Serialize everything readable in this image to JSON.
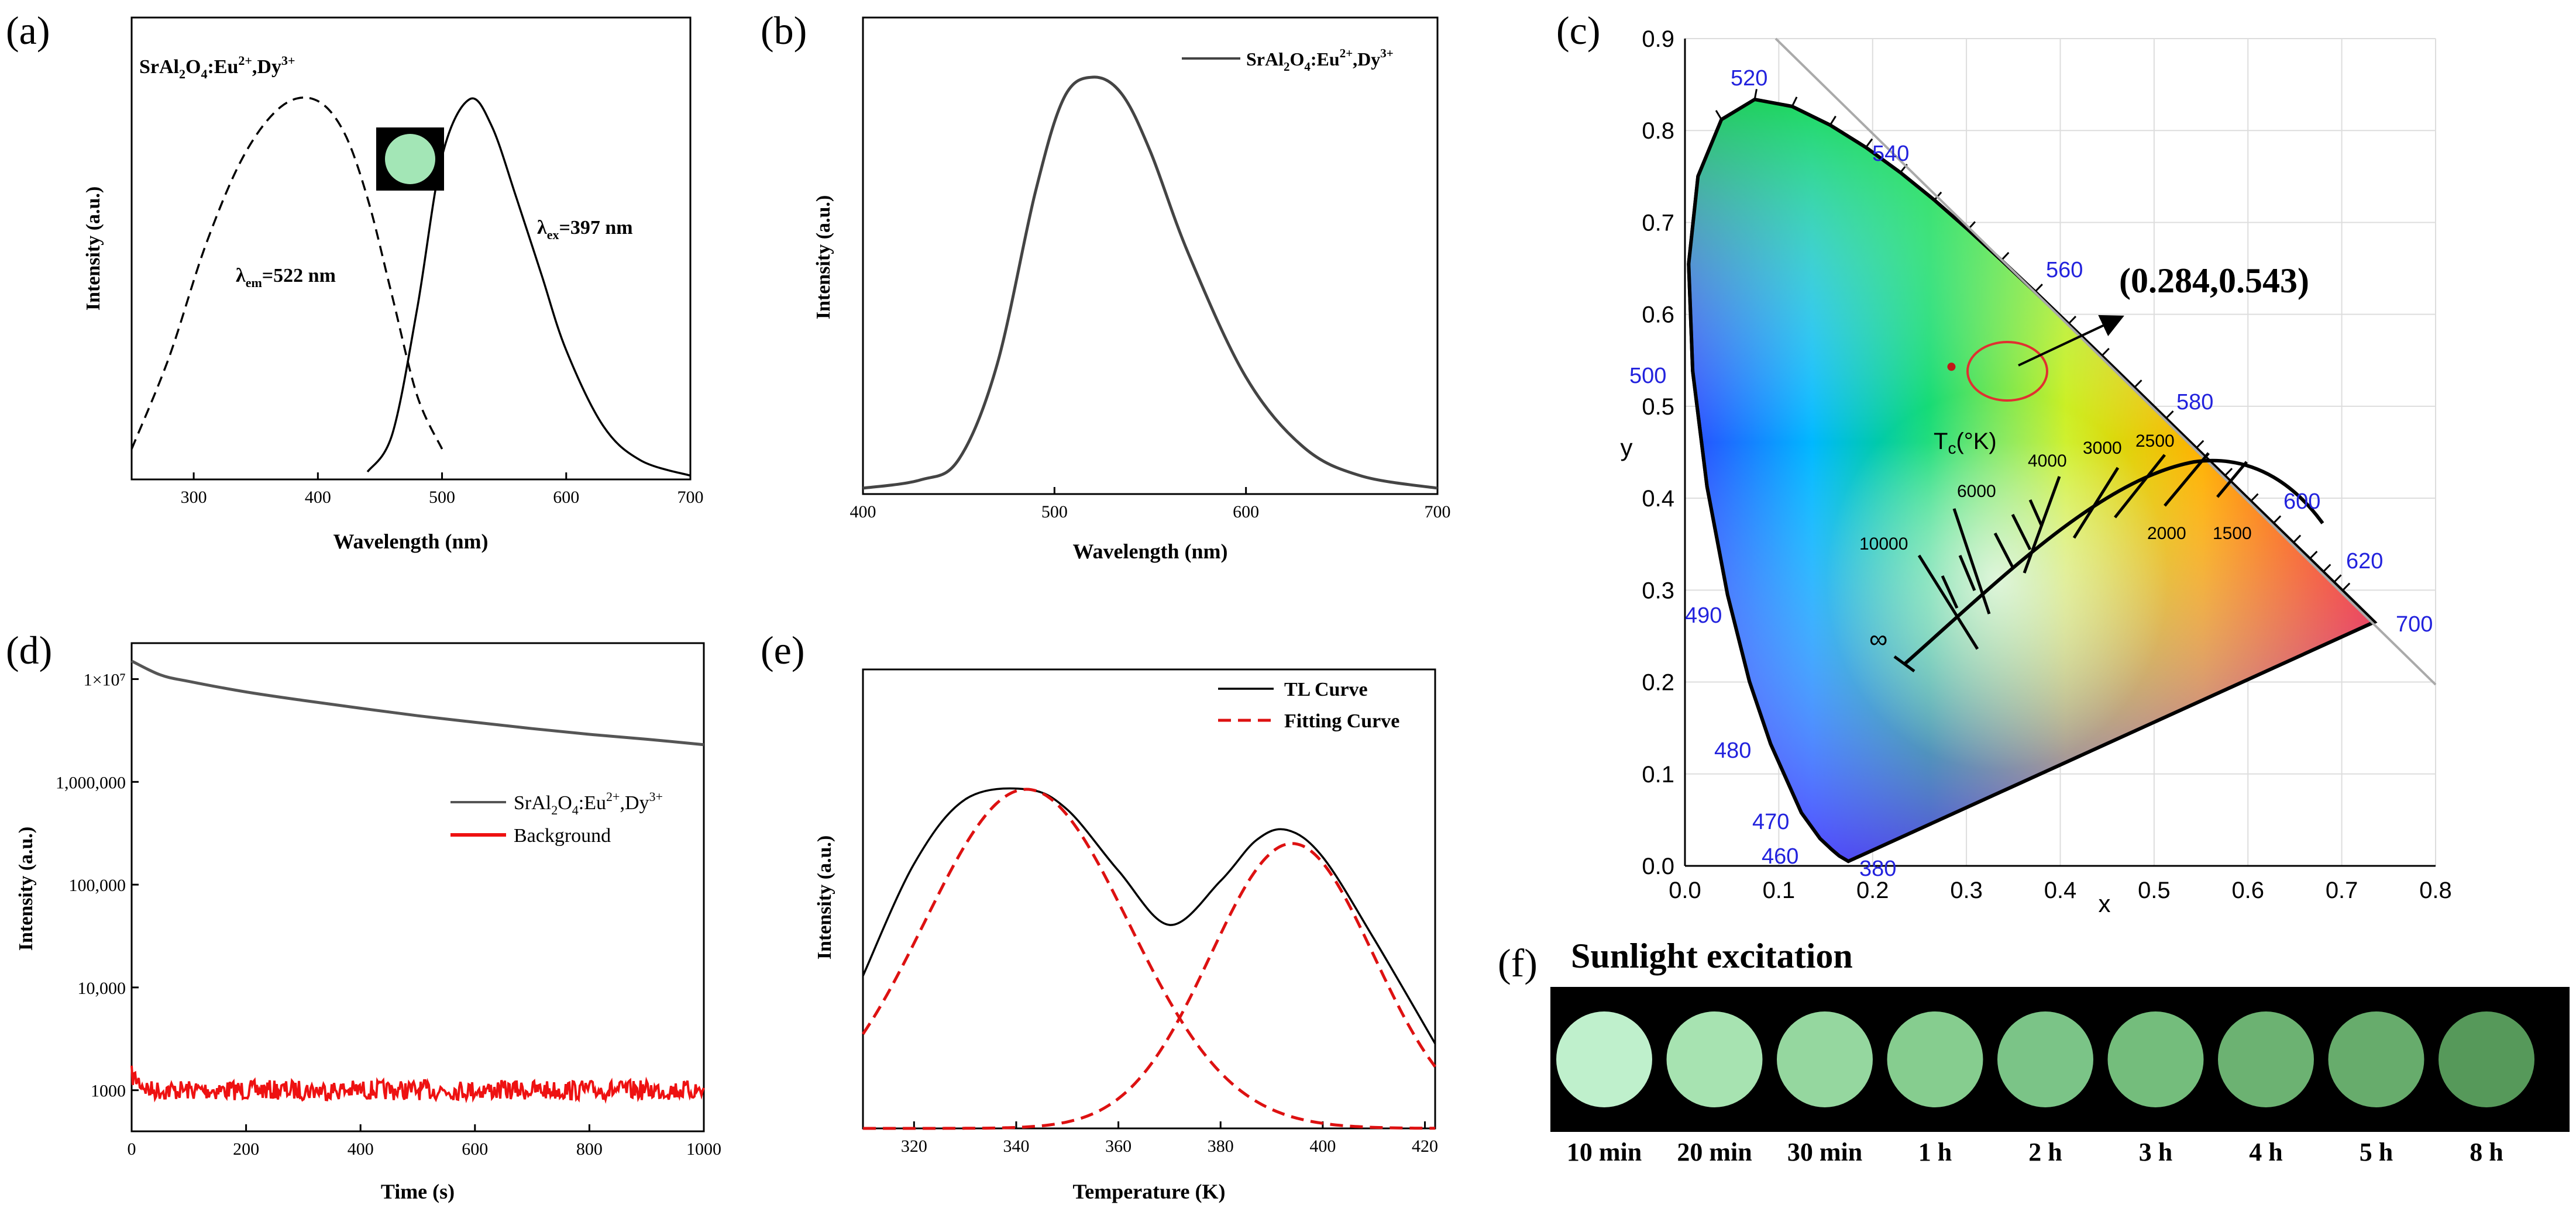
{
  "panels": {
    "a": {
      "label": "(a)",
      "material": "SrAl2O4:Eu2+,Dy3+",
      "xlabel": "Wavelength (nm)",
      "ylabel": "Intensity (a.u.)",
      "em_annot": "λem=522 nm",
      "ex_annot": "λex=397 nm"
    },
    "b": {
      "label": "(b)",
      "xlabel": "Wavelength (nm)",
      "ylabel": "Intensity (a.u.)",
      "legend": "SrAl2O4:Eu2+,Dy3+"
    },
    "c": {
      "label": "(c)",
      "xlabel": "x",
      "ylabel": "y",
      "coord": "(0.284,0.543)",
      "tc_label": "Tc(°K)",
      "infinity": "∞",
      "cct_labels": [
        "10000",
        "6000",
        "4000",
        "3000",
        "2500",
        "2000",
        "1500"
      ],
      "wavelengths": [
        "380",
        "460",
        "470",
        "480",
        "490",
        "500",
        "520",
        "540",
        "560",
        "580",
        "600",
        "620",
        "700"
      ]
    },
    "d": {
      "label": "(d)",
      "xlabel": "Time (s)",
      "ylabel": "Intensity (a.u.)",
      "legend": [
        "SrAl2O4:Eu2+,Dy3+",
        "Background"
      ]
    },
    "e": {
      "label": "(e)",
      "xlabel": "Temperature (K)",
      "ylabel": "Intensity (a.u.)",
      "legend": [
        "TL Curve",
        "Fitting Curve"
      ]
    },
    "f": {
      "label": "(f)",
      "title": "Sunlight excitation",
      "times": [
        "10 min",
        "20 min",
        "30 min",
        "1 h",
        "2 h",
        "3 h",
        "4 h",
        "5 h",
        "8 h"
      ],
      "colors": [
        "#bff0cc",
        "#a7e3b1",
        "#95d79f",
        "#86cd8f",
        "#7bc487",
        "#74bd7c",
        "#6cb272",
        "#67ac6c",
        "#56995a"
      ]
    }
  },
  "chart_data": [
    {
      "type": "line",
      "panel": "a",
      "xlim": [
        250,
        700
      ],
      "xticks": [
        300,
        400,
        500,
        600,
        700
      ],
      "series": [
        {
          "name": "λem=522 nm",
          "style": "dashed",
          "x": [
            250,
            280,
            310,
            340,
            370,
            397,
            420,
            440,
            460,
            480,
            500
          ],
          "y": [
            0.08,
            0.32,
            0.62,
            0.85,
            0.98,
            1.0,
            0.92,
            0.74,
            0.48,
            0.22,
            0.08
          ]
        },
        {
          "name": "λex=397 nm",
          "style": "solid",
          "x": [
            440,
            460,
            480,
            500,
            522,
            540,
            560,
            580,
            600,
            630,
            660,
            700
          ],
          "y": [
            0.02,
            0.12,
            0.45,
            0.85,
            1.0,
            0.93,
            0.74,
            0.54,
            0.34,
            0.14,
            0.05,
            0.01
          ]
        }
      ]
    },
    {
      "type": "line",
      "panel": "b",
      "xlim": [
        400,
        700
      ],
      "xticks": [
        400,
        500,
        600,
        700
      ],
      "series": [
        {
          "name": "SrAl2O4:Eu2+,Dy3+",
          "x": [
            400,
            430,
            450,
            470,
            490,
            505,
            520,
            535,
            550,
            570,
            600,
            630,
            660,
            700
          ],
          "y": [
            0.0,
            0.02,
            0.07,
            0.3,
            0.72,
            0.95,
            1.0,
            0.96,
            0.82,
            0.57,
            0.27,
            0.1,
            0.03,
            0.0
          ]
        }
      ]
    },
    {
      "type": "scatter",
      "panel": "c",
      "xlim": [
        0.0,
        0.8
      ],
      "ylim": [
        0.0,
        0.9
      ],
      "xticks": [
        0.0,
        0.1,
        0.2,
        0.3,
        0.4,
        0.5,
        0.6,
        0.7,
        0.8
      ],
      "yticks": [
        0.0,
        0.1,
        0.2,
        0.3,
        0.4,
        0.5,
        0.6,
        0.7,
        0.8,
        0.9
      ],
      "points": [
        {
          "x": 0.284,
          "y": 0.543
        }
      ]
    },
    {
      "type": "line",
      "panel": "d",
      "xlim": [
        0,
        1000
      ],
      "scale": "log",
      "xticks": [
        0,
        200,
        400,
        600,
        800,
        1000
      ],
      "yticks": [
        "1000",
        "10,000",
        "100,000",
        "1,000,000",
        "1×10⁷"
      ],
      "series": [
        {
          "name": "SrAl2O4:Eu2+,Dy3+",
          "x": [
            0,
            50,
            100,
            200,
            300,
            400,
            500,
            600,
            700,
            800,
            900,
            1000
          ],
          "y": [
            15000000,
            11000000,
            9500000,
            7500000,
            6200000,
            5200000,
            4400000,
            3800000,
            3300000,
            2900000,
            2600000,
            2300000
          ]
        },
        {
          "name": "Background",
          "x": [
            0,
            1000
          ],
          "y": [
            1000,
            1000
          ]
        }
      ]
    },
    {
      "type": "line",
      "panel": "e",
      "xlim": [
        310,
        422
      ],
      "xticks": [
        320,
        340,
        360,
        380,
        400,
        420
      ],
      "series": [
        {
          "name": "TL Curve",
          "style": "solid",
          "x": [
            310,
            320,
            330,
            342,
            350,
            360,
            370,
            380,
            387,
            393,
            400,
            410,
            422
          ],
          "y": [
            0.45,
            0.78,
            0.97,
            1.0,
            0.94,
            0.76,
            0.6,
            0.73,
            0.85,
            0.88,
            0.8,
            0.56,
            0.25
          ]
        },
        {
          "name": "Fitting Curve",
          "style": "dashed",
          "x": [
            310,
            320,
            330,
            342,
            350,
            360,
            370,
            380,
            387,
            395,
            405,
            415,
            422
          ],
          "y": [
            0.45,
            0.78,
            0.97,
            1.0,
            0.93,
            0.72,
            0.55,
            0.6,
            0.74,
            0.85,
            0.72,
            0.45,
            0.25
          ]
        }
      ]
    }
  ]
}
